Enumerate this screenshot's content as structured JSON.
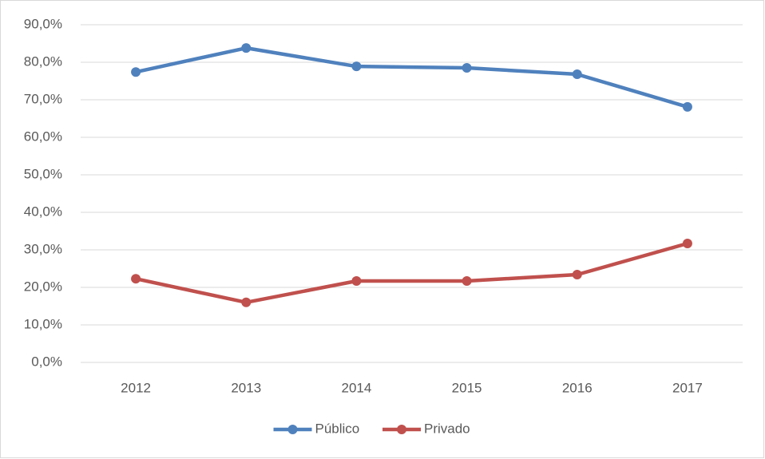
{
  "chart_data": {
    "type": "line",
    "categories": [
      "2012",
      "2013",
      "2014",
      "2015",
      "2016",
      "2017"
    ],
    "series": [
      {
        "name": "Público",
        "color": "#4f81bd",
        "values": [
          77.4,
          83.8,
          78.9,
          78.5,
          76.8,
          68.1
        ]
      },
      {
        "name": "Privado",
        "color": "#c0504d",
        "values": [
          22.3,
          16.0,
          21.7,
          21.7,
          23.4,
          31.7
        ]
      }
    ],
    "ylim": [
      0,
      90
    ],
    "yticks": [
      {
        "value": 0,
        "label": "0,0%"
      },
      {
        "value": 10,
        "label": "10,0%"
      },
      {
        "value": 20,
        "label": "20,0%"
      },
      {
        "value": 30,
        "label": "30,0%"
      },
      {
        "value": 40,
        "label": "40,0%"
      },
      {
        "value": 50,
        "label": "50,0%"
      },
      {
        "value": 60,
        "label": "60,0%"
      },
      {
        "value": 70,
        "label": "70,0%"
      },
      {
        "value": 80,
        "label": "80,0%"
      },
      {
        "value": 90,
        "label": "90,0%"
      }
    ],
    "grid": true,
    "legend": "bottom"
  }
}
